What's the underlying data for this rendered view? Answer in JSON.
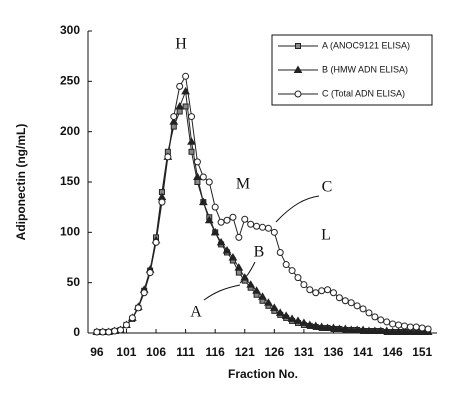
{
  "chart_data": {
    "type": "line",
    "x_label": "Fraction No.",
    "y_label": "Adiponectin (ng/mL)",
    "x": [
      96,
      97,
      98,
      99,
      100,
      101,
      102,
      103,
      104,
      105,
      106,
      107,
      108,
      109,
      110,
      111,
      112,
      113,
      114,
      115,
      116,
      117,
      118,
      119,
      120,
      121,
      122,
      123,
      124,
      125,
      126,
      127,
      128,
      129,
      130,
      131,
      132,
      133,
      134,
      135,
      136,
      137,
      138,
      139,
      140,
      141,
      142,
      143,
      144,
      145,
      146,
      147,
      148,
      149,
      150,
      151,
      152
    ],
    "xlim": [
      94.5,
      153.5
    ],
    "xticks": [
      96,
      101,
      106,
      111,
      116,
      121,
      126,
      131,
      136,
      141,
      146,
      151
    ],
    "ylim": [
      0,
      300
    ],
    "yticks": [
      0,
      50,
      100,
      150,
      200,
      250,
      300
    ],
    "legend": "upper right",
    "series": [
      {
        "name": "A (ANOC9121 ELISA)",
        "marker": "square",
        "color": "#222",
        "values": [
          1,
          1,
          1,
          2,
          3,
          8,
          14,
          25,
          42,
          62,
          95,
          140,
          180,
          205,
          220,
          225,
          180,
          150,
          130,
          115,
          100,
          88,
          80,
          72,
          60,
          52,
          45,
          38,
          32,
          27,
          22,
          18,
          15,
          12,
          10,
          8,
          7,
          6,
          5,
          5,
          4,
          4,
          3,
          3,
          3,
          2,
          2,
          2,
          2,
          1,
          1,
          1,
          1,
          1,
          1,
          1,
          1
        ]
      },
      {
        "name": "B (HMW ADN ELISA)",
        "marker": "triangle",
        "color": "#222",
        "values": [
          1,
          1,
          1,
          2,
          3,
          8,
          15,
          26,
          43,
          63,
          92,
          135,
          175,
          210,
          225,
          240,
          190,
          155,
          130,
          112,
          100,
          90,
          82,
          75,
          65,
          55,
          48,
          42,
          36,
          30,
          25,
          20,
          17,
          14,
          12,
          10,
          8,
          7,
          6,
          5,
          5,
          4,
          4,
          3,
          3,
          3,
          2,
          2,
          2,
          2,
          1,
          1,
          1,
          1,
          1,
          1,
          1
        ]
      },
      {
        "name": "C (Total ADN ELISA)",
        "marker": "circle",
        "color": "#222",
        "values": [
          1,
          1,
          1,
          2,
          3,
          8,
          15,
          25,
          40,
          60,
          90,
          130,
          175,
          215,
          245,
          255,
          215,
          170,
          155,
          150,
          125,
          110,
          112,
          115,
          95,
          113,
          108,
          106,
          105,
          104,
          100,
          80,
          68,
          62,
          55,
          48,
          43,
          40,
          42,
          43,
          40,
          35,
          32,
          30,
          27,
          24,
          20,
          16,
          13,
          11,
          9,
          8,
          7,
          6,
          6,
          5,
          4
        ]
      }
    ],
    "annotations": [
      "H",
      "M",
      "L",
      "A",
      "B",
      "C"
    ]
  }
}
